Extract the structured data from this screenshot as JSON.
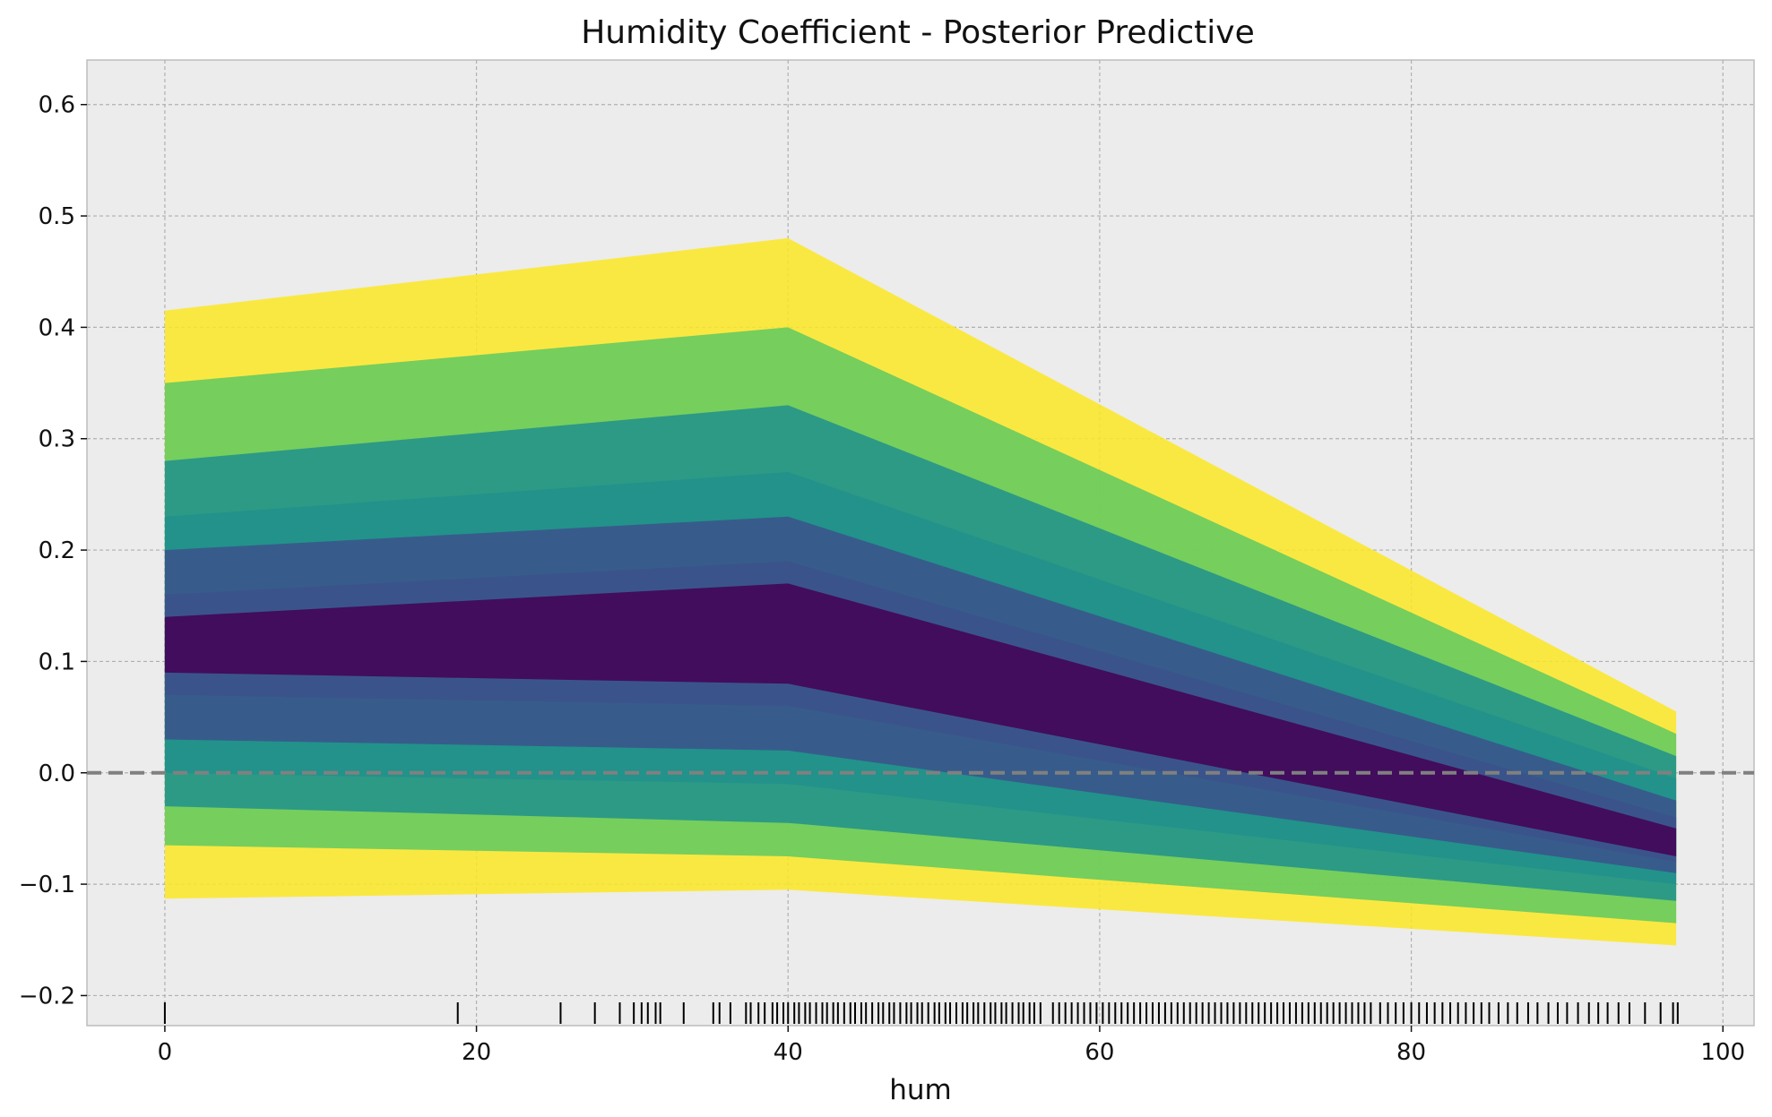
{
  "chart_data": {
    "type": "line",
    "title": "Humidity Coefficient - Posterior Predictive",
    "xlabel": "hum",
    "ylabel": "",
    "xlim": [
      -5,
      102
    ],
    "ylim": [
      -0.227,
      0.64
    ],
    "x_ticks": [
      0,
      20,
      40,
      60,
      80,
      100
    ],
    "y_ticks": [
      -0.2,
      -0.1,
      0.0,
      0.1,
      0.2,
      0.3,
      0.4,
      0.5,
      0.6
    ],
    "x_tick_labels": [
      "0",
      "20",
      "40",
      "60",
      "80",
      "100"
    ],
    "y_tick_labels": [
      "−0.2",
      "−0.1",
      "0.0",
      "0.1",
      "0.2",
      "0.3",
      "0.4",
      "0.5",
      "0.6"
    ],
    "grid": true,
    "legend": "none",
    "colormap": [
      "#440154",
      "#3b528b",
      "#21918c",
      "#5ec962",
      "#fde725"
    ],
    "background_color": "#ececec",
    "reference_line": {
      "y": 0.0,
      "style": "dashed",
      "color": "#808080"
    },
    "hdi_bands": [
      {
        "x": [
          0,
          40,
          97
        ],
        "lower": [
          -0.113,
          -0.105,
          -0.155
        ],
        "upper": [
          0.415,
          0.48,
          0.055
        ]
      },
      {
        "x": [
          0,
          40,
          97
        ],
        "lower": [
          -0.065,
          -0.075,
          -0.135
        ],
        "upper": [
          0.35,
          0.4,
          0.035
        ]
      },
      {
        "x": [
          0,
          40,
          97
        ],
        "lower": [
          -0.03,
          -0.045,
          -0.115
        ],
        "upper": [
          0.28,
          0.33,
          0.015
        ]
      },
      {
        "x": [
          0,
          40,
          97
        ],
        "lower": [
          0.0,
          -0.01,
          -0.1
        ],
        "upper": [
          0.23,
          0.27,
          -0.005
        ]
      },
      {
        "x": [
          0,
          40,
          97
        ],
        "lower": [
          0.03,
          0.02,
          -0.09
        ],
        "upper": [
          0.2,
          0.23,
          -0.025
        ]
      },
      {
        "x": [
          0,
          40,
          97
        ],
        "lower": [
          0.07,
          0.06,
          -0.08
        ],
        "upper": [
          0.16,
          0.19,
          -0.04
        ]
      },
      {
        "x": [
          0,
          40,
          97
        ],
        "lower": [
          0.09,
          0.08,
          -0.075
        ],
        "upper": [
          0.14,
          0.17,
          -0.05
        ]
      }
    ],
    "rug_x": [
      0,
      18.8,
      25.4,
      27.6,
      29.2,
      30.1,
      30.6,
      31.0,
      31.5,
      31.8,
      33.3,
      35.2,
      35.6,
      36.3,
      37.3,
      37.6,
      38.1,
      38.5,
      39.0,
      39.3,
      39.7,
      40.0,
      40.4,
      40.7,
      41.1,
      41.4,
      41.8,
      42.2,
      42.5,
      42.9,
      43.2,
      43.6,
      44.0,
      44.3,
      44.7,
      45.0,
      45.4,
      45.8,
      46.1,
      46.5,
      46.8,
      47.2,
      47.6,
      47.9,
      48.3,
      48.6,
      49.0,
      49.4,
      49.7,
      50.1,
      50.4,
      50.8,
      51.2,
      51.5,
      51.9,
      52.2,
      52.6,
      53.0,
      53.3,
      53.7,
      54.0,
      54.4,
      54.8,
      55.1,
      55.5,
      55.8,
      56.2,
      57.0,
      57.4,
      57.8,
      58.2,
      58.6,
      59.0,
      59.4,
      59.8,
      60.2,
      60.6,
      61.0,
      61.4,
      61.8,
      62.2,
      62.6,
      63.0,
      63.4,
      63.8,
      64.2,
      64.6,
      65.0,
      65.4,
      65.8,
      66.2,
      66.6,
      67.0,
      67.4,
      67.8,
      68.2,
      68.6,
      69.0,
      69.4,
      69.8,
      70.2,
      70.6,
      71.0,
      71.4,
      71.8,
      72.2,
      72.6,
      73.0,
      73.4,
      73.8,
      74.2,
      74.6,
      75.0,
      75.4,
      75.8,
      76.2,
      76.6,
      77.0,
      77.4,
      78.0,
      78.5,
      79.0,
      79.5,
      80.0,
      80.5,
      81.0,
      81.5,
      82.0,
      82.5,
      83.0,
      83.5,
      84.0,
      84.5,
      85.0,
      85.6,
      86.2,
      86.8,
      87.5,
      88.1,
      88.8,
      89.4,
      90.0,
      90.7,
      91.4,
      92.0,
      92.6,
      93.3,
      94.0,
      95.0,
      96.0,
      96.8,
      97.1
    ]
  }
}
